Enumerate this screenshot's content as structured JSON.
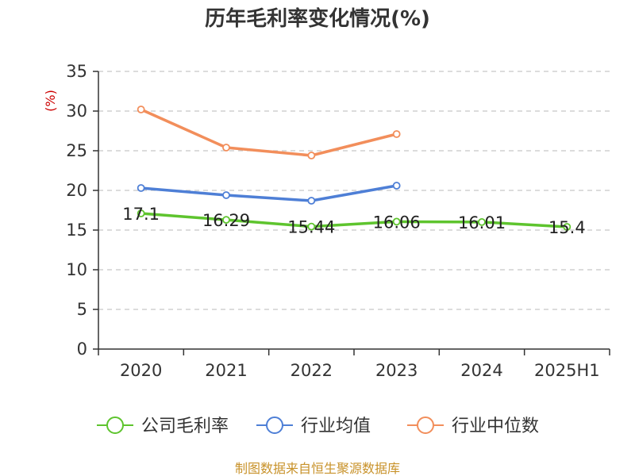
{
  "chart_data": {
    "type": "line",
    "title": "历年毛利率变化情况(%)",
    "ylabel": "(%)",
    "categories": [
      "2020",
      "2021",
      "2022",
      "2023",
      "2024",
      "2025H1"
    ],
    "ylim": [
      0,
      35
    ],
    "yticks": [
      0,
      5,
      10,
      15,
      20,
      25,
      30,
      35
    ],
    "grid": true,
    "legend_position": "bottom",
    "series": [
      {
        "name": "公司毛利率",
        "color": "#5ec42e",
        "values": [
          17.1,
          16.29,
          15.44,
          16.06,
          16.01,
          15.4
        ],
        "labels": [
          "17.1",
          "16.29",
          "15.44",
          "16.06",
          "16.01",
          "15.4"
        ]
      },
      {
        "name": "行业均值",
        "color": "#4e7fd6",
        "values": [
          20.3,
          19.4,
          18.7,
          20.6,
          null,
          null
        ]
      },
      {
        "name": "行业中位数",
        "color": "#f28e5b",
        "values": [
          30.2,
          25.4,
          24.4,
          27.1,
          null,
          null
        ]
      }
    ],
    "source": "制图数据来自恒生聚源数据库"
  }
}
